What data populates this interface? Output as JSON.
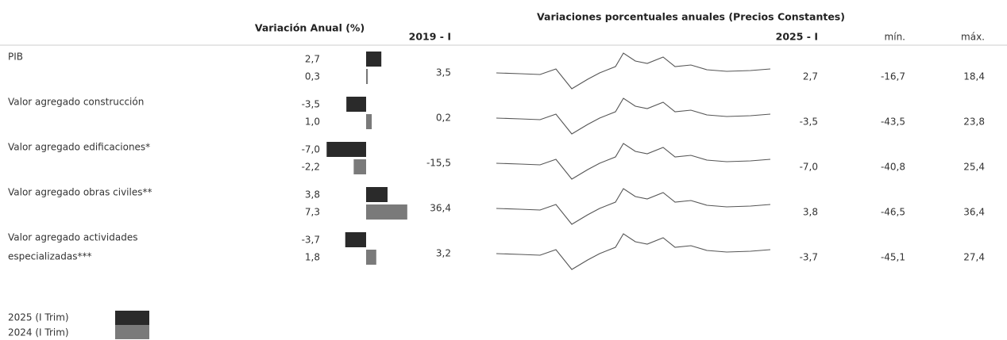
{
  "header": {
    "left_title": "Variación Anual (%)",
    "right_title": "Variaciones porcentuales anuales  (Precios Constantes)",
    "col_start": "2019 - I",
    "col_end": "2025 - I",
    "col_min": "mín.",
    "col_max": "máx."
  },
  "rows": [
    {
      "name_lines": [
        "PIB"
      ],
      "bars": {
        "values": [
          2.7,
          0.3
        ],
        "value_labels": [
          "2,7",
          "0,3"
        ]
      },
      "start": "3,5",
      "end": "2,7",
      "min": "-16,7",
      "max": "18,4"
    },
    {
      "name_lines": [
        "Valor agregado construcción"
      ],
      "bars": {
        "values": [
          -3.5,
          1.0
        ],
        "value_labels": [
          "-3,5",
          "1,0"
        ]
      },
      "start": "0,2",
      "end": "-3,5",
      "min": "-43,5",
      "max": "23,8"
    },
    {
      "name_lines": [
        "Valor agregado edificaciones*"
      ],
      "bars": {
        "values": [
          -7.0,
          -2.2
        ],
        "value_labels": [
          "-7,0",
          "-2,2"
        ]
      },
      "start": "-15,5",
      "end": "-7,0",
      "min": "-40,8",
      "max": "25,4"
    },
    {
      "name_lines": [
        "Valor agregado obras civiles**"
      ],
      "bars": {
        "values": [
          3.8,
          7.3
        ],
        "value_labels": [
          "3,8",
          "7,3"
        ]
      },
      "start": "36,4",
      "end": "3,8",
      "min": "-46,5",
      "max": "36,4"
    },
    {
      "name_lines": [
        "Valor agregado actividades",
        "especializadas***"
      ],
      "bars": {
        "values": [
          -3.7,
          1.8
        ],
        "value_labels": [
          "-3,7",
          "1,8"
        ]
      },
      "start": "3,2",
      "end": "-3,7",
      "min": "-45,1",
      "max": "27,4"
    }
  ],
  "legend": [
    "2025 (I Trim)",
    "2024 (I Trim)"
  ]
}
